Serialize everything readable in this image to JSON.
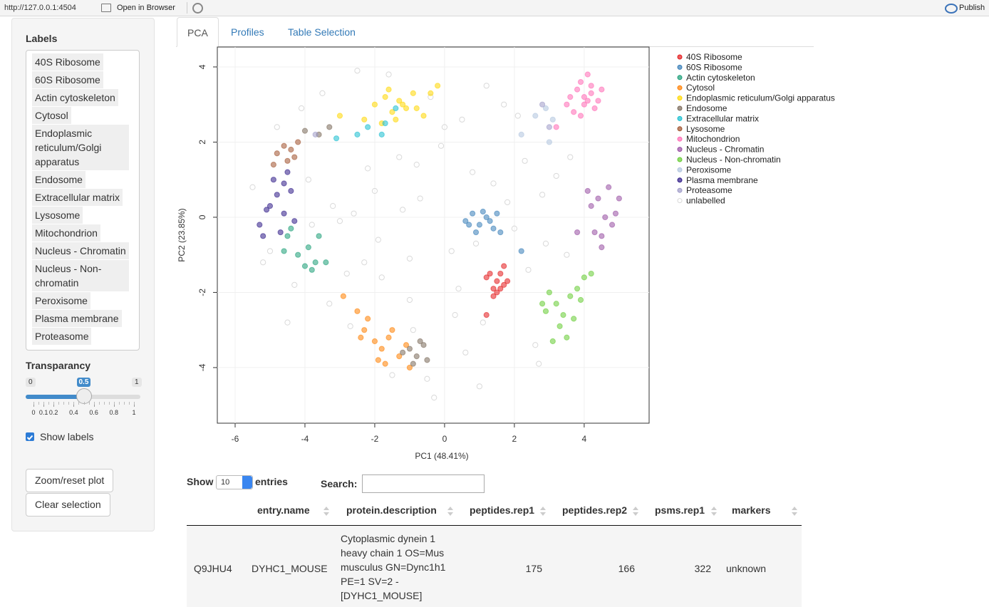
{
  "browser_bar": {
    "url": "http://127.0.0.1:4504",
    "open_in_browser": "Open in Browser",
    "publish": "Publish"
  },
  "sidebar": {
    "labels_title": "Labels",
    "labels": [
      "40S Ribosome",
      "60S Ribosome",
      "Actin cytoskeleton",
      "Cytosol",
      "Endoplasmic reticulum/Golgi apparatus",
      "Endosome",
      "Extracellular matrix",
      "Lysosome",
      "Mitochondrion",
      "Nucleus - Chromatin",
      "Nucleus - Non-chromatin",
      "Peroxisome",
      "Plasma membrane",
      "Proteasome"
    ],
    "transparancy_title": "Transparancy",
    "slider": {
      "min": 0,
      "max": 1,
      "value": 0.5,
      "ticks": [
        0,
        0.1,
        0.2,
        0.4,
        0.6,
        0.8,
        1
      ]
    },
    "show_labels": "Show labels",
    "show_labels_checked": true,
    "buttons": [
      "Zoom/reset plot",
      "Clear selection"
    ]
  },
  "tabs": {
    "items": [
      "PCA",
      "Profiles",
      "Table Selection"
    ],
    "active": 0
  },
  "chart_data": {
    "type": "scatter",
    "xlabel": "PC1 (48.41%)",
    "ylabel": "PC2 (23.85%)",
    "xlim": [
      -6.51,
      5.86
    ],
    "ylim": [
      -5.48,
      4.53
    ],
    "xticks": [
      -6,
      -4,
      -2,
      0,
      2,
      4
    ],
    "yticks": [
      -4,
      -2,
      0,
      2,
      4
    ],
    "grid": true,
    "series": [
      {
        "name": "40S Ribosome",
        "color": "#e41a1c",
        "x": [
          1.2,
          1.4,
          1.5,
          1.6,
          1.7,
          1.5,
          1.3,
          1.6,
          1.8,
          1.2,
          1.4,
          1.7
        ],
        "values": [
          -1.6,
          -1.9,
          -1.7,
          -1.9,
          -1.8,
          -2.0,
          -1.5,
          -1.5,
          -1.7,
          -2.6,
          -2.1,
          -1.3
        ]
      },
      {
        "name": "60S Ribosome",
        "color": "#377eb8",
        "x": [
          0.6,
          0.8,
          1.0,
          1.2,
          1.4,
          1.1,
          0.9,
          1.3,
          1.6,
          1.5,
          0.7,
          2.2
        ],
        "values": [
          -0.1,
          0.1,
          -0.2,
          0.0,
          -0.3,
          0.15,
          -0.4,
          -0.1,
          -0.4,
          0.1,
          -0.2,
          -0.9
        ]
      },
      {
        "name": "Actin cytoskeleton",
        "color": "#1b9e77",
        "x": [
          -4.4,
          -4.2,
          -4.0,
          -3.9,
          -3.7,
          -4.5,
          -3.6,
          -3.4,
          -4.6,
          -3.8
        ],
        "values": [
          -0.3,
          -1.0,
          -1.3,
          -0.8,
          -1.2,
          -0.5,
          -0.5,
          -1.2,
          -0.9,
          -1.4
        ]
      },
      {
        "name": "Cytosol",
        "color": "#ff7f00",
        "x": [
          -2.5,
          -2.3,
          -2.0,
          -1.8,
          -1.6,
          -2.2,
          -1.9,
          -1.5,
          -1.3,
          -2.4,
          -1.7,
          -1.1,
          -2.9,
          -1.0
        ],
        "values": [
          -2.5,
          -3.0,
          -3.3,
          -3.5,
          -3.2,
          -2.7,
          -3.8,
          -3.0,
          -3.7,
          -3.2,
          -3.9,
          -3.4,
          -2.1,
          -4.0
        ]
      },
      {
        "name": "Endoplasmic reticulum/Golgi apparatus",
        "color": "#ffd700",
        "x": [
          -2.0,
          -1.7,
          -1.5,
          -1.3,
          -1.1,
          -0.9,
          -0.6,
          -1.4,
          -1.6,
          -1.2,
          -0.4,
          -0.2,
          -2.3,
          -3.0,
          -0.8,
          -1.8
        ],
        "values": [
          3.0,
          3.2,
          2.8,
          3.1,
          2.9,
          3.3,
          2.7,
          2.6,
          3.4,
          3.0,
          3.3,
          3.5,
          2.6,
          2.7,
          2.9,
          2.5
        ]
      },
      {
        "name": "Endosome",
        "color": "#7a6a5a",
        "x": [
          -1.0,
          -0.8,
          -0.6,
          -1.2,
          -0.5,
          -0.9,
          -0.7,
          -3.6,
          -4.0,
          -3.3
        ],
        "values": [
          -3.5,
          -3.7,
          -3.4,
          -3.6,
          -3.8,
          -3.9,
          -3.3,
          2.2,
          2.3,
          2.4
        ]
      },
      {
        "name": "Extracellular matrix",
        "color": "#17becf",
        "x": [
          -2.5,
          -2.2,
          -1.8,
          -1.7,
          -3.1,
          -1.4
        ],
        "values": [
          2.2,
          2.4,
          2.2,
          2.5,
          2.1,
          2.9
        ]
      },
      {
        "name": "Lysosome",
        "color": "#a0522d",
        "x": [
          -4.8,
          -4.6,
          -4.4,
          -4.2,
          -4.5,
          -4.3,
          -4.9
        ],
        "values": [
          1.7,
          1.9,
          1.8,
          2.0,
          1.5,
          1.6,
          1.4
        ]
      },
      {
        "name": "Mitochondrion",
        "color": "#ff69b4",
        "x": [
          3.6,
          3.8,
          4.0,
          4.2,
          4.4,
          3.9,
          4.1,
          4.3,
          3.7,
          4.0,
          4.2,
          3.5,
          3.2,
          4.5,
          3.9,
          4.1
        ],
        "values": [
          3.2,
          3.4,
          3.0,
          3.3,
          3.1,
          3.6,
          3.8,
          2.9,
          2.8,
          3.2,
          3.5,
          3.0,
          2.4,
          3.4,
          2.7,
          3.1
        ]
      },
      {
        "name": "Nucleus - Chromatin",
        "color": "#984ea3",
        "x": [
          4.2,
          4.4,
          4.6,
          4.8,
          5.0,
          4.5,
          4.7,
          4.3,
          4.9,
          3.8,
          4.1,
          4.5
        ],
        "values": [
          0.3,
          0.5,
          0.0,
          -0.2,
          0.5,
          -0.5,
          0.8,
          -0.4,
          0.1,
          -0.4,
          0.7,
          -0.8
        ]
      },
      {
        "name": "Nucleus - Non-chromatin",
        "color": "#66cc33",
        "x": [
          3.0,
          3.2,
          3.4,
          3.6,
          3.8,
          4.0,
          3.3,
          3.5,
          2.9,
          3.1,
          3.7,
          4.2,
          3.9,
          2.8
        ],
        "values": [
          -2.0,
          -2.3,
          -2.6,
          -2.1,
          -1.9,
          -1.6,
          -2.9,
          -3.2,
          -2.5,
          -3.3,
          -2.7,
          -1.5,
          -2.2,
          -2.3
        ]
      },
      {
        "name": "Peroxisome",
        "color": "#b0c4de",
        "x": [
          2.9,
          3.1,
          2.2,
          3.0,
          2.6
        ],
        "values": [
          2.9,
          2.6,
          2.2,
          2.0,
          2.7
        ]
      },
      {
        "name": "Plasma membrane",
        "color": "#2e1a87",
        "x": [
          -5.0,
          -4.8,
          -4.6,
          -4.4,
          -5.1,
          -4.7,
          -4.5,
          -5.2,
          -4.9,
          -4.3,
          -5.3,
          -4.6
        ],
        "values": [
          0.3,
          0.6,
          0.1,
          0.7,
          0.2,
          -0.4,
          1.2,
          -0.5,
          1.0,
          -0.1,
          -0.2,
          0.9
        ]
      },
      {
        "name": "Proteasome",
        "color": "#9e9ac8",
        "x": [
          2.8,
          3.0,
          -3.7
        ],
        "values": [
          3.0,
          2.4,
          2.2
        ]
      },
      {
        "name": "unlabelled",
        "color": "#d9d9d9",
        "hollow": true,
        "x": [
          -5.5,
          -5.2,
          -4.8,
          -4.3,
          -3.9,
          -3.5,
          -3.2,
          -2.8,
          -2.5,
          -2.2,
          -1.9,
          -1.6,
          -1.3,
          -1.0,
          -0.7,
          -0.4,
          -0.1,
          0.2,
          0.5,
          0.8,
          1.1,
          1.4,
          1.7,
          2.0,
          2.3,
          2.6,
          2.9,
          3.2,
          3.5,
          -5.0,
          -4.1,
          -3.3,
          -2.6,
          -1.8,
          -0.9,
          0.0,
          0.9,
          1.8,
          2.7,
          3.6,
          -3.0,
          -2.0,
          -1.0,
          0.3,
          1.2,
          2.4,
          -0.5,
          0.6,
          -1.5,
          -3.8,
          -2.7,
          -0.3,
          1.0,
          2.1,
          -4.5,
          -1.2,
          0.4,
          2.8,
          -2.3,
          -0.8
        ],
        "values": [
          0.8,
          -1.2,
          2.4,
          -1.8,
          1.0,
          3.3,
          0.3,
          -1.5,
          3.9,
          1.3,
          -0.6,
          3.8,
          1.6,
          -2.2,
          0.5,
          3.2,
          1.9,
          -0.9,
          2.6,
          1.2,
          -2.8,
          0.9,
          3.0,
          -0.3,
          1.5,
          -3.4,
          -0.7,
          1.1,
          -1.0,
          -0.9,
          2.9,
          -2.3,
          0.1,
          -1.6,
          -3.0,
          2.4,
          -0.7,
          0.4,
          -3.9,
          1.6,
          -0.1,
          0.7,
          -1.1,
          -2.6,
          3.5,
          -1.4,
          -4.3,
          -3.6,
          -4.2,
          -0.2,
          -2.9,
          -4.8,
          -4.5,
          2.7,
          -2.8,
          0.2,
          -1.9,
          0.6,
          -1.2,
          1.4
        ]
      }
    ]
  },
  "table": {
    "show": "Show",
    "length": 10,
    "entries": "entries",
    "search": "Search:",
    "columns": [
      "entry.name",
      "protein.description",
      "peptides.rep1",
      "peptides.rep2",
      "psms.rep1",
      "markers"
    ],
    "rows": [
      [
        "Q9JHU4",
        "DYHC1_MOUSE",
        "Cytoplasmic dynein 1 heavy chain 1 OS=Mus musculus GN=Dync1h1 PE=1 SV=2 - [DYHC1_MOUSE]",
        175,
        166,
        322,
        "unknown"
      ]
    ]
  }
}
